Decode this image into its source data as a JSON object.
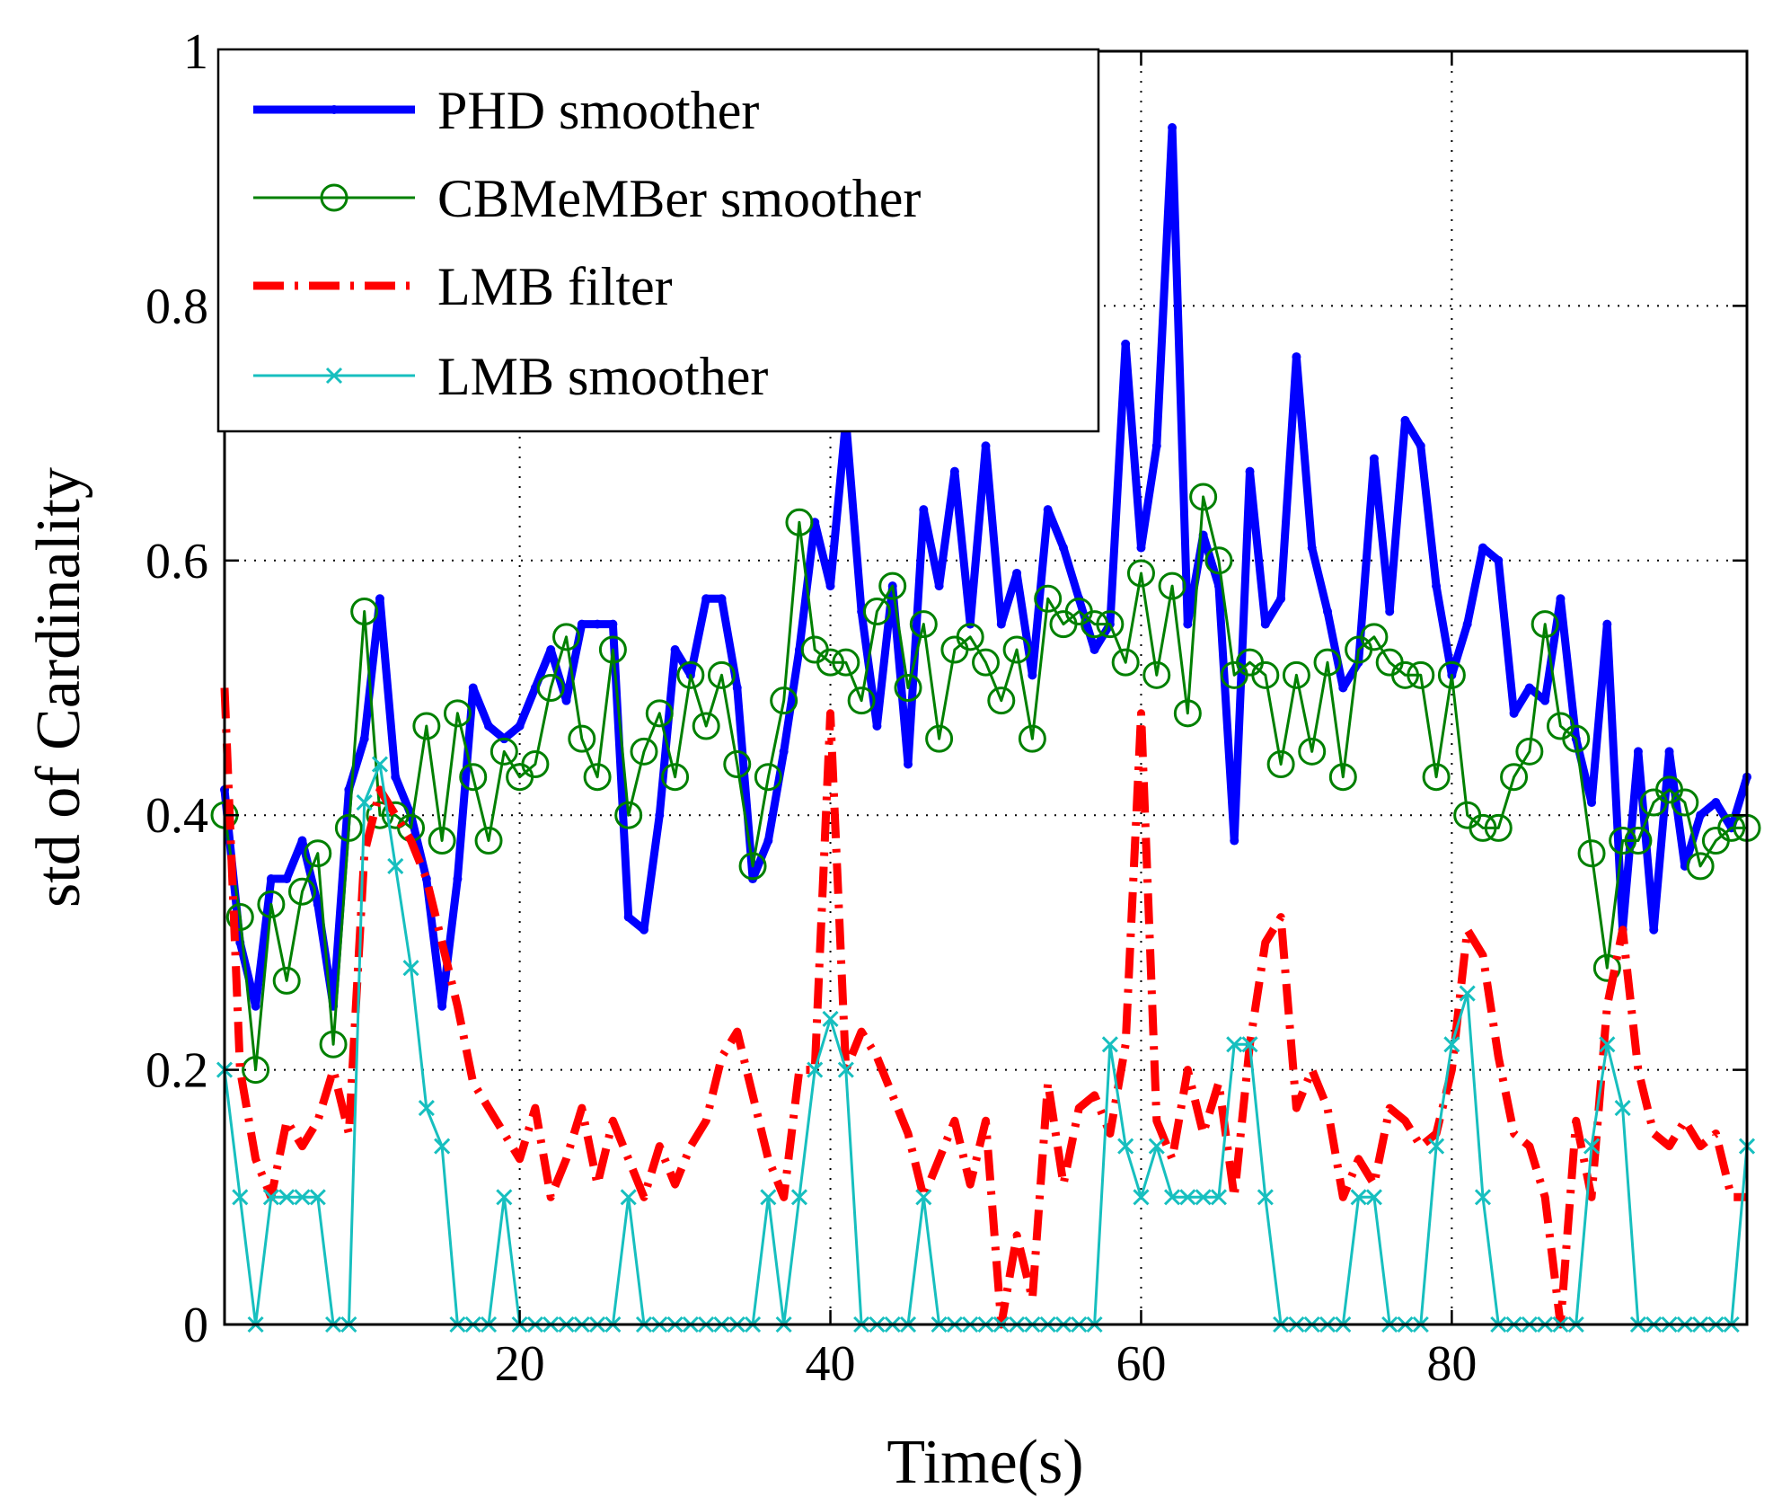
{
  "chart_data": {
    "type": "line",
    "title": "",
    "xlabel": "Time(s)",
    "ylabel": "std of Cardinality",
    "xlim": [
      1,
      99
    ],
    "ylim": [
      0,
      1
    ],
    "xticks": [
      20,
      40,
      60,
      80
    ],
    "yticks": [
      0,
      0.2,
      0.4,
      0.6,
      0.8,
      1
    ],
    "ytick_labels": [
      "0",
      "0.2",
      "0.4",
      "0.6",
      "0.8",
      "1"
    ],
    "grid": true,
    "legend_position": "top-left",
    "series": [
      {
        "name": "PHD smoother",
        "color": "#0000ff",
        "style": "solid-thick",
        "marker": "dot",
        "x": [
          1,
          2,
          3,
          4,
          5,
          6,
          7,
          8,
          9,
          10,
          11,
          12,
          13,
          14,
          15,
          16,
          17,
          18,
          19,
          20,
          21,
          22,
          23,
          24,
          25,
          26,
          27,
          28,
          29,
          30,
          31,
          32,
          33,
          34,
          35,
          36,
          37,
          38,
          39,
          40,
          41,
          42,
          43,
          44,
          45,
          46,
          47,
          48,
          49,
          50,
          51,
          52,
          53,
          54,
          55,
          56,
          57,
          58,
          59,
          60,
          61,
          62,
          63,
          64,
          65,
          66,
          67,
          68,
          69,
          70,
          71,
          72,
          73,
          74,
          75,
          76,
          77,
          78,
          79,
          80,
          81,
          82,
          83,
          84,
          85,
          86,
          87,
          88,
          89,
          90,
          91,
          92,
          93,
          94,
          95,
          96,
          97,
          98,
          99
        ],
        "y": [
          0.42,
          0.3,
          0.25,
          0.35,
          0.35,
          0.38,
          0.33,
          0.25,
          0.42,
          0.46,
          0.57,
          0.43,
          0.4,
          0.35,
          0.25,
          0.35,
          0.5,
          0.47,
          0.46,
          0.47,
          0.5,
          0.53,
          0.49,
          0.55,
          0.55,
          0.55,
          0.32,
          0.31,
          0.4,
          0.53,
          0.51,
          0.57,
          0.57,
          0.5,
          0.35,
          0.38,
          0.45,
          0.53,
          0.63,
          0.58,
          0.71,
          0.56,
          0.47,
          0.58,
          0.44,
          0.64,
          0.58,
          0.67,
          0.55,
          0.69,
          0.55,
          0.59,
          0.51,
          0.64,
          0.61,
          0.57,
          0.53,
          0.55,
          0.77,
          0.61,
          0.69,
          0.94,
          0.55,
          0.62,
          0.58,
          0.38,
          0.67,
          0.55,
          0.57,
          0.76,
          0.61,
          0.56,
          0.5,
          0.52,
          0.68,
          0.56,
          0.71,
          0.69,
          0.58,
          0.51,
          0.55,
          0.61,
          0.6,
          0.48,
          0.5,
          0.49,
          0.57,
          0.46,
          0.41,
          0.55,
          0.31,
          0.45,
          0.31,
          0.45,
          0.36,
          0.4,
          0.41,
          0.39,
          0.43
        ]
      },
      {
        "name": "CBMeMBer smoother",
        "color": "#008000",
        "style": "solid-thin",
        "marker": "circle",
        "x": [
          1,
          2,
          3,
          4,
          5,
          6,
          7,
          8,
          9,
          10,
          11,
          12,
          13,
          14,
          15,
          16,
          17,
          18,
          19,
          20,
          21,
          22,
          23,
          24,
          25,
          26,
          27,
          28,
          29,
          30,
          31,
          32,
          33,
          34,
          35,
          36,
          37,
          38,
          39,
          40,
          41,
          42,
          43,
          44,
          45,
          46,
          47,
          48,
          49,
          50,
          51,
          52,
          53,
          54,
          55,
          56,
          57,
          58,
          59,
          60,
          61,
          62,
          63,
          64,
          65,
          66,
          67,
          68,
          69,
          70,
          71,
          72,
          73,
          74,
          75,
          76,
          77,
          78,
          79,
          80,
          81,
          82,
          83,
          84,
          85,
          86,
          87,
          88,
          89,
          90,
          91,
          92,
          93,
          94,
          95,
          96,
          97,
          98,
          99
        ],
        "y": [
          0.4,
          0.32,
          0.2,
          0.33,
          0.27,
          0.34,
          0.37,
          0.22,
          0.39,
          0.56,
          0.4,
          0.4,
          0.39,
          0.47,
          0.38,
          0.48,
          0.43,
          0.38,
          0.45,
          0.43,
          0.44,
          0.5,
          0.54,
          0.46,
          0.43,
          0.53,
          0.4,
          0.45,
          0.48,
          0.43,
          0.51,
          0.47,
          0.51,
          0.44,
          0.36,
          0.43,
          0.49,
          0.63,
          0.53,
          0.52,
          0.52,
          0.49,
          0.56,
          0.58,
          0.5,
          0.55,
          0.46,
          0.53,
          0.54,
          0.52,
          0.49,
          0.53,
          0.46,
          0.57,
          0.55,
          0.56,
          0.55,
          0.55,
          0.52,
          0.59,
          0.51,
          0.58,
          0.48,
          0.65,
          0.6,
          0.51,
          0.52,
          0.51,
          0.44,
          0.51,
          0.45,
          0.52,
          0.43,
          0.53,
          0.54,
          0.52,
          0.51,
          0.51,
          0.43,
          0.51,
          0.4,
          0.39,
          0.39,
          0.43,
          0.45,
          0.55,
          0.47,
          0.46,
          0.37,
          0.28,
          0.38,
          0.38,
          0.41,
          0.42,
          0.41,
          0.36,
          0.38,
          0.39,
          0.39
        ]
      },
      {
        "name": "LMB filter",
        "color": "#ff0000",
        "style": "dash-dot-thick",
        "marker": "none",
        "x": [
          1,
          2,
          3,
          4,
          5,
          6,
          7,
          8,
          9,
          10,
          11,
          12,
          13,
          14,
          15,
          16,
          17,
          18,
          19,
          20,
          21,
          22,
          23,
          24,
          25,
          26,
          27,
          28,
          29,
          30,
          31,
          32,
          33,
          34,
          35,
          36,
          37,
          38,
          39,
          40,
          41,
          42,
          43,
          44,
          45,
          46,
          47,
          48,
          49,
          50,
          51,
          52,
          53,
          54,
          55,
          56,
          57,
          58,
          59,
          60,
          61,
          62,
          63,
          64,
          65,
          66,
          67,
          68,
          69,
          70,
          71,
          72,
          73,
          74,
          75,
          76,
          77,
          78,
          79,
          80,
          81,
          82,
          83,
          84,
          85,
          86,
          87,
          88,
          89,
          90,
          91,
          92,
          93,
          94,
          95,
          96,
          97,
          98,
          99
        ],
        "y": [
          0.5,
          0.2,
          0.13,
          0.1,
          0.16,
          0.14,
          0.16,
          0.2,
          0.15,
          0.37,
          0.42,
          0.4,
          0.38,
          0.35,
          0.3,
          0.25,
          0.19,
          0.17,
          0.15,
          0.13,
          0.17,
          0.1,
          0.13,
          0.17,
          0.11,
          0.16,
          0.13,
          0.1,
          0.14,
          0.11,
          0.14,
          0.16,
          0.21,
          0.23,
          0.18,
          0.13,
          0.1,
          0.2,
          0.2,
          0.48,
          0.2,
          0.23,
          0.21,
          0.18,
          0.15,
          0.1,
          0.13,
          0.16,
          0.11,
          0.16,
          0.0,
          0.07,
          0.02,
          0.19,
          0.11,
          0.17,
          0.18,
          0.15,
          0.22,
          0.48,
          0.16,
          0.13,
          0.2,
          0.15,
          0.19,
          0.1,
          0.22,
          0.3,
          0.32,
          0.17,
          0.2,
          0.17,
          0.1,
          0.13,
          0.11,
          0.17,
          0.16,
          0.14,
          0.15,
          0.2,
          0.31,
          0.29,
          0.21,
          0.15,
          0.14,
          0.1,
          0.0,
          0.16,
          0.1,
          0.25,
          0.31,
          0.2,
          0.15,
          0.14,
          0.16,
          0.14,
          0.15,
          0.1,
          0.1
        ]
      },
      {
        "name": "LMB smoother",
        "color": "#17bfbf",
        "style": "solid-thin",
        "marker": "x",
        "x": [
          1,
          2,
          3,
          4,
          5,
          6,
          7,
          8,
          9,
          10,
          11,
          12,
          13,
          14,
          15,
          16,
          17,
          18,
          19,
          20,
          21,
          22,
          23,
          24,
          25,
          26,
          27,
          28,
          29,
          30,
          31,
          32,
          33,
          34,
          35,
          36,
          37,
          38,
          39,
          40,
          41,
          42,
          43,
          44,
          45,
          46,
          47,
          48,
          49,
          50,
          51,
          52,
          53,
          54,
          55,
          56,
          57,
          58,
          59,
          60,
          61,
          62,
          63,
          64,
          65,
          66,
          67,
          68,
          69,
          70,
          71,
          72,
          73,
          74,
          75,
          76,
          77,
          78,
          79,
          80,
          81,
          82,
          83,
          84,
          85,
          86,
          87,
          88,
          89,
          90,
          91,
          92,
          93,
          94,
          95,
          96,
          97,
          98,
          99
        ],
        "y": [
          0.2,
          0.1,
          0.0,
          0.1,
          0.1,
          0.1,
          0.1,
          0.0,
          0.0,
          0.41,
          0.44,
          0.36,
          0.28,
          0.17,
          0.14,
          0.0,
          0.0,
          0.0,
          0.1,
          0.0,
          0.0,
          0.0,
          0.0,
          0.0,
          0.0,
          0.0,
          0.1,
          0.0,
          0.0,
          0.0,
          0.0,
          0.0,
          0.0,
          0.0,
          0.0,
          0.1,
          0.0,
          0.1,
          0.2,
          0.24,
          0.2,
          0.0,
          0.0,
          0.0,
          0.0,
          0.1,
          0.0,
          0.0,
          0.0,
          0.0,
          0.0,
          0.0,
          0.0,
          0.0,
          0.0,
          0.0,
          0.0,
          0.22,
          0.14,
          0.1,
          0.14,
          0.1,
          0.1,
          0.1,
          0.1,
          0.22,
          0.22,
          0.1,
          0.0,
          0.0,
          0.0,
          0.0,
          0.0,
          0.1,
          0.1,
          0.0,
          0.0,
          0.0,
          0.14,
          0.22,
          0.26,
          0.1,
          0.0,
          0.0,
          0.0,
          0.0,
          0.0,
          0.0,
          0.14,
          0.22,
          0.17,
          0.0,
          0.0,
          0.0,
          0.0,
          0.0,
          0.0,
          0.0,
          0.14
        ]
      }
    ]
  }
}
